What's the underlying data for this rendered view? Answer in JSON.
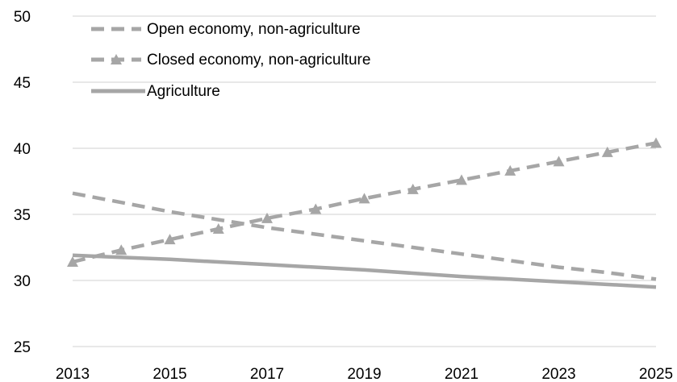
{
  "chart_data": {
    "type": "line",
    "title": "",
    "xlabel": "",
    "ylabel": "",
    "xlim": [
      2013,
      2025
    ],
    "ylim": [
      25,
      50
    ],
    "x_ticks": [
      "2013",
      "2015",
      "2017",
      "2019",
      "2021",
      "2023",
      "2025"
    ],
    "y_ticks": [
      "25",
      "30",
      "35",
      "40",
      "45",
      "50"
    ],
    "grid": true,
    "legend_position": "top-left",
    "series": [
      {
        "name": "Open economy, non-agriculture",
        "style": "dashed",
        "marker": "none",
        "color": "#a6a6a6",
        "x": [
          2013,
          2014,
          2015,
          2016,
          2017,
          2018,
          2019,
          2020,
          2021,
          2022,
          2023,
          2024,
          2025
        ],
        "values": [
          36.6,
          35.9,
          35.2,
          34.6,
          34.0,
          33.5,
          33.0,
          32.5,
          32.0,
          31.5,
          31.0,
          30.6,
          30.1
        ]
      },
      {
        "name": "Closed economy, non-agriculture",
        "style": "dashed",
        "marker": "triangle",
        "color": "#a6a6a6",
        "x": [
          2013,
          2014,
          2015,
          2016,
          2017,
          2018,
          2019,
          2020,
          2021,
          2022,
          2023,
          2024,
          2025
        ],
        "values": [
          31.4,
          32.3,
          33.1,
          33.9,
          34.7,
          35.4,
          36.2,
          36.9,
          37.6,
          38.3,
          39.0,
          39.7,
          40.4
        ]
      },
      {
        "name": "Agriculture",
        "style": "solid",
        "marker": "none",
        "color": "#a6a6a6",
        "x": [
          2013,
          2015,
          2017,
          2019,
          2021,
          2023,
          2025
        ],
        "values": [
          31.9,
          31.6,
          31.2,
          30.8,
          30.3,
          29.9,
          29.5
        ]
      }
    ]
  }
}
